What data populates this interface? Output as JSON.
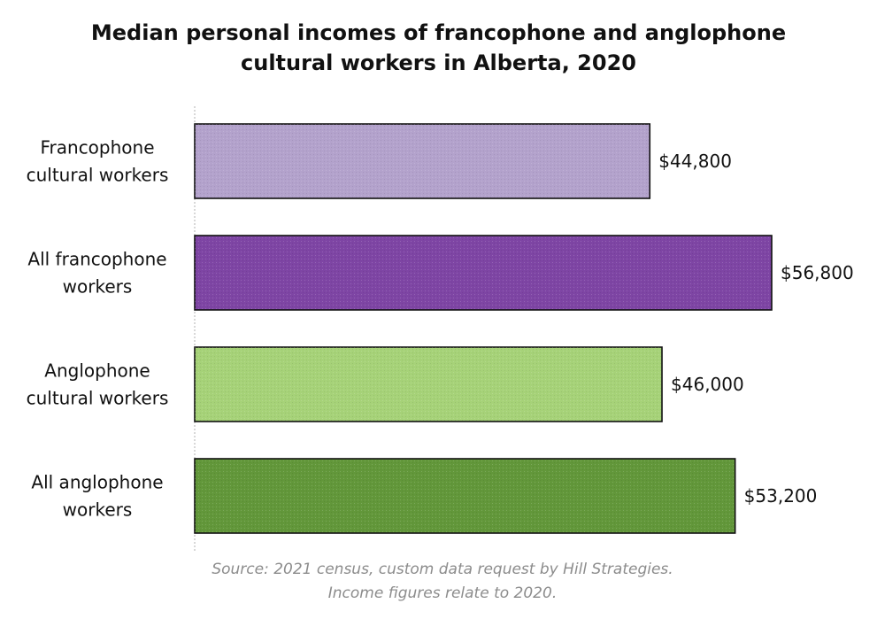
{
  "title": {
    "line1": "Median personal incomes of francophone and anglophone",
    "line2": "cultural workers in Alberta, 2020"
  },
  "source": {
    "line1": "Source: 2021 census, custom data request by Hill Strategies.",
    "line2": "Income figures relate to 2020."
  },
  "colors": {
    "bar_outline": "#111111",
    "axis_line": "#b0b0b0",
    "label_text": "#111111"
  },
  "chart_data": {
    "type": "bar",
    "orientation": "horizontal",
    "title": "Median personal incomes of francophone and anglophone cultural workers in Alberta, 2020",
    "xlabel": "",
    "ylabel": "",
    "grid": false,
    "legend": "none",
    "xlim": [
      0,
      60000
    ],
    "categories": [
      [
        "Francophone",
        "cultural workers"
      ],
      [
        "All francophone",
        "workers"
      ],
      [
        "Anglophone",
        "cultural workers"
      ],
      [
        "All anglophone",
        "workers"
      ]
    ],
    "values": [
      44800,
      56800,
      46000,
      53200
    ],
    "value_labels": [
      "$44,800",
      "$56,800",
      "$46,000",
      "$53,200"
    ],
    "bar_colors": [
      "#b3a2cc",
      "#7e45a4",
      "#a6d278",
      "#62973a"
    ]
  }
}
